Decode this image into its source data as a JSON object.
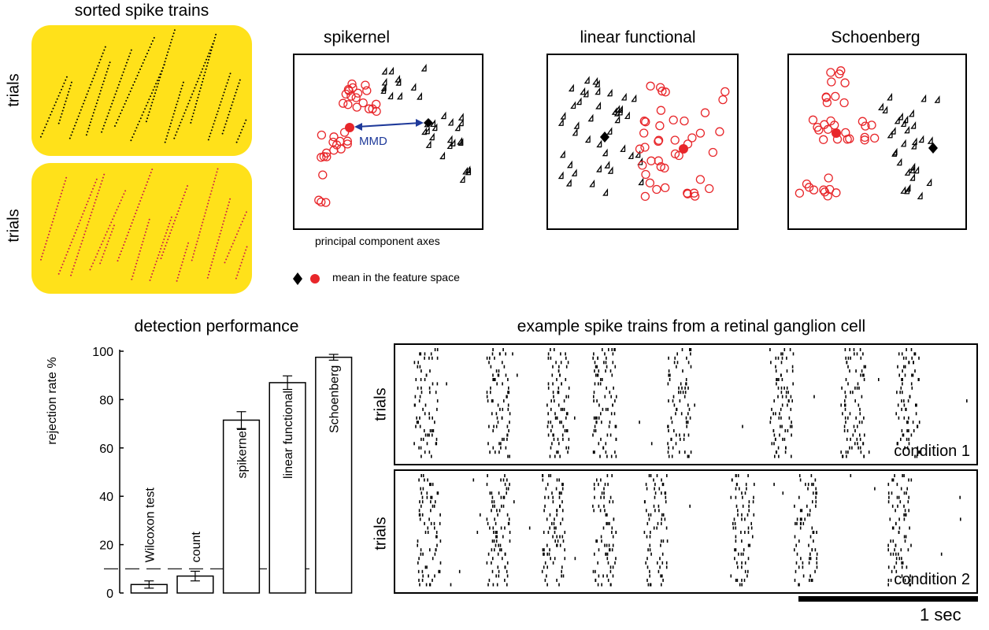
{
  "sorted": {
    "title": "sorted spike trains",
    "ylabel_top": "trials",
    "ylabel_bottom": "trials",
    "panel_color": "#ffe11a",
    "top_spike_color": "#000000",
    "bottom_spike_color": "#cc1f4a"
  },
  "scatter": {
    "panels": [
      {
        "title": "spikernel"
      },
      {
        "title": "linear functional"
      },
      {
        "title": "Schoenberg"
      }
    ],
    "axes_caption": "principal component axes",
    "mmd_label": "MMD",
    "legend_label": "mean in the feature space",
    "red_color": "#e8262a",
    "black_color": "#000000",
    "mmd_color": "#1f3a9a"
  },
  "bar_panel": {
    "title": "detection performance",
    "ylabel": "rejection rate %"
  },
  "raster": {
    "title": "example spike trains from a retinal ganglion cell",
    "ylabel_top": "trials",
    "ylabel_bottom": "trials",
    "condition1": "condition 1",
    "condition2": "condition 2",
    "scale_label": "1 sec"
  },
  "chart_data": [
    {
      "type": "bar",
      "title": "detection performance",
      "xlabel": "",
      "ylabel": "rejection rate %",
      "categories": [
        "Wilcoxon test",
        "count",
        "spikernel",
        "linear functional",
        "Schoenberg"
      ],
      "values": [
        3.5,
        7,
        71.5,
        87,
        97.5
      ],
      "errors": [
        1.5,
        2,
        3.5,
        2.8,
        1.2
      ],
      "reference_line": 10,
      "ylim": [
        0,
        100
      ],
      "yticks": [
        0,
        20,
        40,
        60,
        80,
        100
      ]
    }
  ]
}
